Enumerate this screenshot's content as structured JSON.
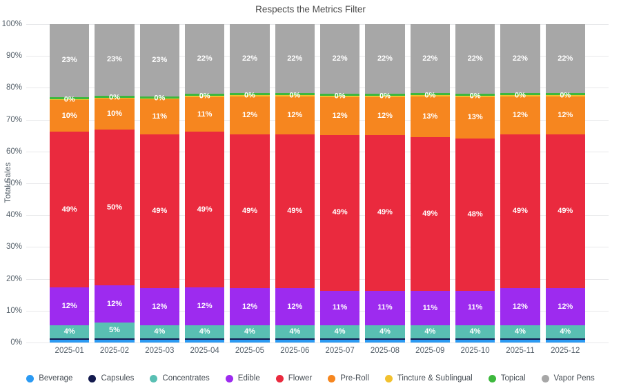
{
  "chart_data": {
    "type": "bar",
    "stacked": true,
    "percent_axis": true,
    "title": "Respects the Metrics Filter",
    "xlabel": "",
    "ylabel": "Total Sales",
    "ylim": [
      0,
      100
    ],
    "ytick_step": 10,
    "ytick_suffix": "%",
    "grid": true,
    "legend_position": "bottom",
    "categories": [
      "2025-01",
      "2025-02",
      "2025-03",
      "2025-04",
      "2025-05",
      "2025-06",
      "2025-07",
      "2025-08",
      "2025-09",
      "2025-10",
      "2025-11",
      "2025-12"
    ],
    "series": [
      {
        "name": "Beverage",
        "color": "#2b9af3",
        "values": [
          0.8,
          0.8,
          0.8,
          0.8,
          0.8,
          0.8,
          0.8,
          0.8,
          0.8,
          0.8,
          0.8,
          0.8
        ],
        "labels": null
      },
      {
        "name": "Capsules",
        "color": "#131a4e",
        "values": [
          0.6,
          0.6,
          0.6,
          0.6,
          0.6,
          0.6,
          0.6,
          0.6,
          0.6,
          0.6,
          0.6,
          0.6
        ],
        "labels": null
      },
      {
        "name": "Concentrates",
        "color": "#59bfb3",
        "values": [
          4,
          5,
          4,
          4,
          4,
          4,
          4,
          4,
          4,
          4,
          4,
          4
        ],
        "labels": [
          "4%",
          "5%",
          "4%",
          "4%",
          "4%",
          "4%",
          "4%",
          "4%",
          "4%",
          "4%",
          "4%",
          "4%"
        ]
      },
      {
        "name": "Edible",
        "color": "#9d2bef",
        "values": [
          12,
          12,
          12,
          12,
          12,
          12,
          11,
          11,
          11,
          11,
          12,
          12
        ],
        "labels": [
          "12%",
          "12%",
          "12%",
          "12%",
          "12%",
          "12%",
          "11%",
          "11%",
          "11%",
          "11%",
          "12%",
          "12%"
        ]
      },
      {
        "name": "Flower",
        "color": "#ea2a3e",
        "values": [
          49,
          50,
          49,
          49,
          49,
          49,
          49,
          49,
          49,
          48,
          49,
          49
        ],
        "labels": [
          "49%",
          "50%",
          "49%",
          "49%",
          "49%",
          "49%",
          "49%",
          "49%",
          "49%",
          "48%",
          "49%",
          "49%"
        ]
      },
      {
        "name": "Pre-Roll",
        "color": "#f6861f",
        "values": [
          10,
          10,
          11,
          11,
          12,
          12,
          12,
          12,
          13,
          13,
          12,
          12
        ],
        "labels": [
          "10%",
          "10%",
          "11%",
          "11%",
          "12%",
          "12%",
          "12%",
          "12%",
          "13%",
          "13%",
          "12%",
          "12%"
        ]
      },
      {
        "name": "Tincture & Sublingual",
        "color": "#f2c12e",
        "values": [
          0.4,
          0.4,
          0.4,
          0.4,
          0.4,
          0.4,
          0.4,
          0.4,
          0.4,
          0.4,
          0.4,
          0.4
        ],
        "labels": [
          "0%",
          "0%",
          "0%",
          "0%",
          "0%",
          "0%",
          "0%",
          "0%",
          "0%",
          "0%",
          "0%",
          "0%"
        ]
      },
      {
        "name": "Topical",
        "color": "#3db83d",
        "values": [
          0.6,
          0.6,
          0.6,
          0.6,
          0.6,
          0.6,
          0.6,
          0.6,
          0.6,
          0.6,
          0.6,
          0.6
        ],
        "labels": null
      },
      {
        "name": "Vapor Pens",
        "color": "#a7a7a7",
        "values": [
          23,
          23,
          23,
          22,
          22,
          22,
          22,
          22,
          22,
          22,
          22,
          22
        ],
        "labels": [
          "23%",
          "23%",
          "23%",
          "22%",
          "22%",
          "22%",
          "22%",
          "22%",
          "22%",
          "22%",
          "22%",
          "22%"
        ]
      }
    ]
  }
}
